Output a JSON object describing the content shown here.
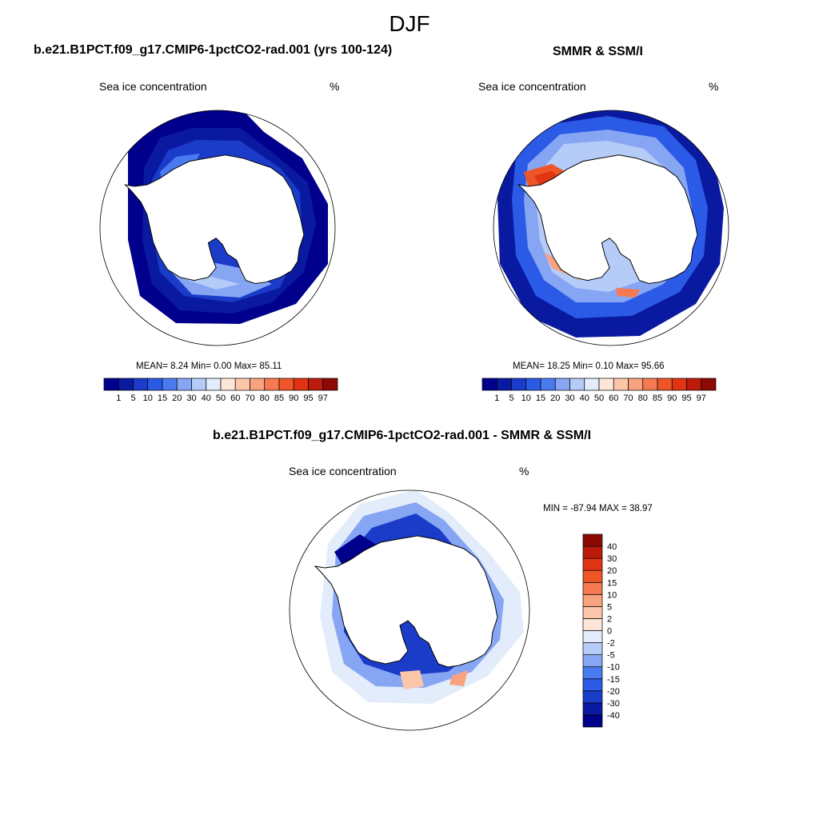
{
  "main_title": "DJF",
  "panels": [
    {
      "title": "b.e21.B1PCT.f09_g17.CMIP6-1pctCO2-rad.001 (yrs 100-124)",
      "variable": "Sea ice concentration",
      "units": "%",
      "stats": "MEAN=   8.24  Min=   0.00  Max=  85.11"
    },
    {
      "title": "SMMR & SSM/I",
      "variable": "Sea ice concentration",
      "units": "%",
      "stats": "MEAN=  18.25  Min=   0.10  Max=  95.66"
    },
    {
      "title": "b.e21.B1PCT.f09_g17.CMIP6-1pctCO2-rad.001 - SMMR & SSM/I",
      "variable": "Sea ice concentration",
      "units": "%",
      "stats": "MIN = -87.94 MAX =  38.97"
    }
  ],
  "colorbar_abs": {
    "colors": [
      "#00008c",
      "#0a1aa0",
      "#1a3cc8",
      "#2a5ae6",
      "#4a7af0",
      "#86a6f4",
      "#b6ccf8",
      "#e2ecfa",
      "#fde6d8",
      "#fbc6aa",
      "#f8a280",
      "#f57a52",
      "#ee5628",
      "#e03412",
      "#bc1a0a",
      "#8c0a05"
    ],
    "labels": [
      "1",
      "5",
      "10",
      "15",
      "20",
      "30",
      "40",
      "50",
      "60",
      "70",
      "80",
      "85",
      "90",
      "95",
      "97"
    ]
  },
  "colorbar_diff": {
    "colors": [
      "#00008c",
      "#0a1aa0",
      "#1a3cc8",
      "#2a5ae6",
      "#4a7af0",
      "#86a6f4",
      "#b6ccf8",
      "#e2ecfa",
      "#fde6d8",
      "#fbc6aa",
      "#f8a280",
      "#f57a52",
      "#ee5628",
      "#e03412",
      "#bc1a0a",
      "#8c0a05"
    ],
    "labels": [
      "-40",
      "-30",
      "-20",
      "-15",
      "-10",
      "-5",
      "-2",
      "0",
      "2",
      "5",
      "10",
      "15",
      "20",
      "30",
      "40"
    ]
  }
}
